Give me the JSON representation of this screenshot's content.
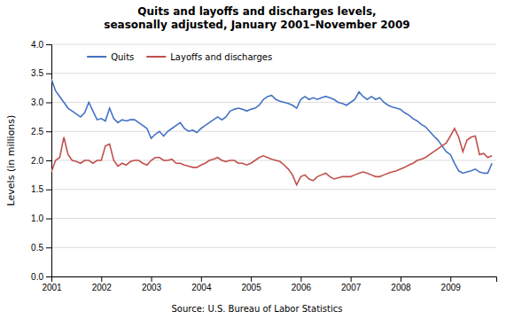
{
  "chart_data": {
    "type": "line",
    "title": "Quits and layoffs and discharges levels,\nseasonally adjusted, January 2001–November 2009",
    "y_label": "Levels (in millions)",
    "source": "Source: U.S. Bureau of Labor Statistics",
    "grid": "y",
    "legend": "upper left",
    "xlim": [
      2001.0,
      2009.92
    ],
    "xticks": [
      2001,
      2002,
      2003,
      2004,
      2005,
      2006,
      2007,
      2008,
      2009
    ],
    "ylim": [
      0.0,
      4.0
    ],
    "yticks": [
      {
        "value": 0.0,
        "label": "0.0"
      },
      0.5,
      {
        "value": 1.0,
        "label": "1.0"
      },
      1.5,
      {
        "value": 2.0,
        "label": "2.0"
      },
      2.5,
      {
        "value": 3.0,
        "label": "3.0"
      },
      3.5,
      {
        "value": 4.0,
        "label": "4.0"
      }
    ],
    "x": [
      2001.0,
      2001.0833333333333,
      2001.1666666666667,
      2001.25,
      2001.3333333333333,
      2001.4166666666667,
      2001.5,
      2001.5833333333333,
      2001.6666666666667,
      2001.75,
      2001.8333333333333,
      2001.9166666666667,
      2002.0,
      2002.0833333333333,
      2002.1666666666667,
      2002.25,
      2002.3333333333333,
      2002.4166666666667,
      2002.5,
      2002.5833333333333,
      2002.6666666666667,
      2002.75,
      2002.8333333333333,
      2002.9166666666667,
      2003.0,
      2003.0833333333333,
      2003.1666666666667,
      2003.25,
      2003.3333333333333,
      2003.4166666666667,
      2003.5,
      2003.5833333333333,
      2003.6666666666667,
      2003.75,
      2003.8333333333333,
      2003.9166666666667,
      2004.0,
      2004.0833333333333,
      2004.1666666666667,
      2004.25,
      2004.3333333333333,
      2004.4166666666667,
      2004.5,
      2004.5833333333333,
      2004.6666666666667,
      2004.75,
      2004.8333333333333,
      2004.9166666666667,
      2005.0,
      2005.0833333333333,
      2005.1666666666667,
      2005.25,
      2005.3333333333333,
      2005.4166666666667,
      2005.5,
      2005.5833333333333,
      2005.6666666666667,
      2005.75,
      2005.8333333333333,
      2005.9166666666667,
      2006.0,
      2006.0833333333333,
      2006.1666666666667,
      2006.25,
      2006.3333333333333,
      2006.4166666666667,
      2006.5,
      2006.5833333333333,
      2006.6666666666667,
      2006.75,
      2006.8333333333333,
      2006.9166666666667,
      2007.0,
      2007.0833333333333,
      2007.1666666666667,
      2007.25,
      2007.3333333333333,
      2007.4166666666667,
      2007.5,
      2007.5833333333333,
      2007.6666666666667,
      2007.75,
      2007.8333333333333,
      2007.9166666666667,
      2008.0,
      2008.0833333333333,
      2008.1666666666667,
      2008.25,
      2008.3333333333333,
      2008.4166666666667,
      2008.5,
      2008.5833333333333,
      2008.6666666666667,
      2008.75,
      2008.8333333333333,
      2008.9166666666667,
      2009.0,
      2009.0833333333333,
      2009.1666666666667,
      2009.25,
      2009.3333333333333,
      2009.4166666666667,
      2009.5,
      2009.5833333333333,
      2009.6666666666667,
      2009.75,
      2009.8333333333333
    ],
    "series": [
      {
        "name": "Quits",
        "color": "#4472C4",
        "values": [
          3.4,
          3.2,
          3.1,
          3.0,
          2.9,
          2.85,
          2.8,
          2.75,
          2.82,
          3.0,
          2.85,
          2.7,
          2.72,
          2.68,
          2.9,
          2.72,
          2.65,
          2.7,
          2.68,
          2.7,
          2.7,
          2.65,
          2.6,
          2.55,
          2.38,
          2.45,
          2.5,
          2.42,
          2.5,
          2.55,
          2.6,
          2.65,
          2.55,
          2.5,
          2.52,
          2.48,
          2.55,
          2.6,
          2.65,
          2.7,
          2.75,
          2.7,
          2.75,
          2.85,
          2.88,
          2.9,
          2.88,
          2.85,
          2.88,
          2.9,
          2.95,
          3.05,
          3.1,
          3.12,
          3.05,
          3.02,
          3.0,
          2.98,
          2.95,
          2.9,
          3.05,
          3.1,
          3.05,
          3.08,
          3.05,
          3.08,
          3.1,
          3.08,
          3.05,
          3.0,
          2.98,
          2.95,
          3.0,
          3.05,
          3.18,
          3.1,
          3.05,
          3.1,
          3.05,
          3.08,
          3.0,
          2.95,
          2.92,
          2.9,
          2.88,
          2.82,
          2.78,
          2.72,
          2.68,
          2.62,
          2.58,
          2.5,
          2.42,
          2.35,
          2.25,
          2.15,
          2.1,
          1.95,
          1.82,
          1.78,
          1.8,
          1.82,
          1.85,
          1.8,
          1.78,
          1.78,
          1.95
        ]
      },
      {
        "name": "Layoffs and discharges",
        "color": "#C0504D",
        "values": [
          1.8,
          2.0,
          2.05,
          2.4,
          2.1,
          2.0,
          1.98,
          1.95,
          2.0,
          2.0,
          1.95,
          2.0,
          2.0,
          2.25,
          2.28,
          2.0,
          1.9,
          1.95,
          1.92,
          1.98,
          2.0,
          2.0,
          1.95,
          1.92,
          2.0,
          2.05,
          2.05,
          2.0,
          2.0,
          2.02,
          1.95,
          1.95,
          1.92,
          1.9,
          1.88,
          1.88,
          1.92,
          1.95,
          2.0,
          2.02,
          2.05,
          2.0,
          1.98,
          2.0,
          2.0,
          1.95,
          1.95,
          1.92,
          1.95,
          2.0,
          2.05,
          2.08,
          2.05,
          2.02,
          2.0,
          1.98,
          1.92,
          1.85,
          1.75,
          1.58,
          1.72,
          1.75,
          1.68,
          1.65,
          1.72,
          1.75,
          1.78,
          1.72,
          1.68,
          1.7,
          1.72,
          1.72,
          1.72,
          1.75,
          1.78,
          1.8,
          1.78,
          1.75,
          1.72,
          1.72,
          1.75,
          1.78,
          1.8,
          1.82,
          1.85,
          1.88,
          1.92,
          1.95,
          2.0,
          2.02,
          2.05,
          2.1,
          2.15,
          2.2,
          2.25,
          2.3,
          2.42,
          2.55,
          2.4,
          2.15,
          2.35,
          2.4,
          2.42,
          2.1,
          2.12,
          2.05,
          2.08
        ]
      }
    ]
  }
}
